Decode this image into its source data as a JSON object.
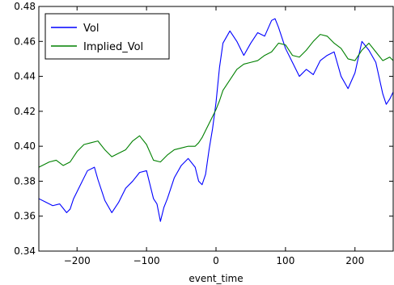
{
  "chart_data": {
    "type": "line",
    "xlabel": "event_time",
    "ylabel": "",
    "xlim": [
      -255,
      255
    ],
    "ylim": [
      0.34,
      0.48
    ],
    "x_ticks": [
      -200,
      -100,
      0,
      100,
      200
    ],
    "x_tick_labels": [
      "−200",
      "−100",
      "0",
      "100",
      "200"
    ],
    "y_ticks": [
      0.34,
      0.36,
      0.38,
      0.4,
      0.42,
      0.44,
      0.46,
      0.48
    ],
    "y_tick_labels": [
      "0.34",
      "0.36",
      "0.38",
      "0.40",
      "0.42",
      "0.44",
      "0.46",
      "0.48"
    ],
    "grid": false,
    "legend_position": "top-left",
    "series": [
      {
        "name": "Vol",
        "color": "#0000ff",
        "x": [
          -255,
          -245,
          -235,
          -225,
          -215,
          -210,
          -205,
          -195,
          -185,
          -175,
          -170,
          -160,
          -150,
          -140,
          -130,
          -120,
          -110,
          -100,
          -95,
          -90,
          -85,
          -80,
          -75,
          -70,
          -60,
          -50,
          -40,
          -30,
          -25,
          -20,
          -15,
          -10,
          -5,
          0,
          5,
          10,
          20,
          30,
          40,
          50,
          60,
          70,
          80,
          85,
          90,
          100,
          110,
          120,
          130,
          140,
          150,
          160,
          170,
          180,
          190,
          200,
          210,
          220,
          230,
          240,
          245,
          250,
          255
        ],
        "y": [
          0.37,
          0.368,
          0.366,
          0.367,
          0.362,
          0.364,
          0.37,
          0.378,
          0.386,
          0.388,
          0.381,
          0.369,
          0.362,
          0.368,
          0.376,
          0.38,
          0.385,
          0.386,
          0.378,
          0.37,
          0.367,
          0.357,
          0.365,
          0.37,
          0.382,
          0.389,
          0.393,
          0.388,
          0.38,
          0.378,
          0.384,
          0.398,
          0.41,
          0.425,
          0.445,
          0.459,
          0.466,
          0.46,
          0.452,
          0.459,
          0.465,
          0.463,
          0.472,
          0.473,
          0.468,
          0.456,
          0.448,
          0.44,
          0.444,
          0.441,
          0.449,
          0.452,
          0.454,
          0.44,
          0.433,
          0.442,
          0.46,
          0.455,
          0.448,
          0.43,
          0.424,
          0.427,
          0.431
        ]
      },
      {
        "name": "Implied_Vol",
        "color": "#008000",
        "x": [
          -255,
          -240,
          -230,
          -220,
          -210,
          -200,
          -190,
          -180,
          -170,
          -160,
          -150,
          -140,
          -130,
          -120,
          -110,
          -100,
          -90,
          -80,
          -70,
          -60,
          -50,
          -40,
          -30,
          -25,
          -20,
          -15,
          -10,
          -5,
          0,
          5,
          10,
          20,
          30,
          40,
          50,
          60,
          70,
          80,
          90,
          100,
          110,
          120,
          130,
          140,
          150,
          160,
          170,
          180,
          190,
          200,
          210,
          220,
          230,
          240,
          250,
          255
        ],
        "y": [
          0.388,
          0.391,
          0.392,
          0.389,
          0.391,
          0.397,
          0.401,
          0.402,
          0.403,
          0.398,
          0.394,
          0.396,
          0.398,
          0.403,
          0.406,
          0.401,
          0.392,
          0.391,
          0.395,
          0.398,
          0.399,
          0.4,
          0.4,
          0.402,
          0.405,
          0.409,
          0.413,
          0.417,
          0.421,
          0.426,
          0.432,
          0.438,
          0.444,
          0.447,
          0.448,
          0.449,
          0.452,
          0.454,
          0.459,
          0.458,
          0.452,
          0.451,
          0.455,
          0.46,
          0.464,
          0.463,
          0.459,
          0.456,
          0.45,
          0.449,
          0.455,
          0.459,
          0.454,
          0.449,
          0.451,
          0.449
        ]
      }
    ]
  }
}
